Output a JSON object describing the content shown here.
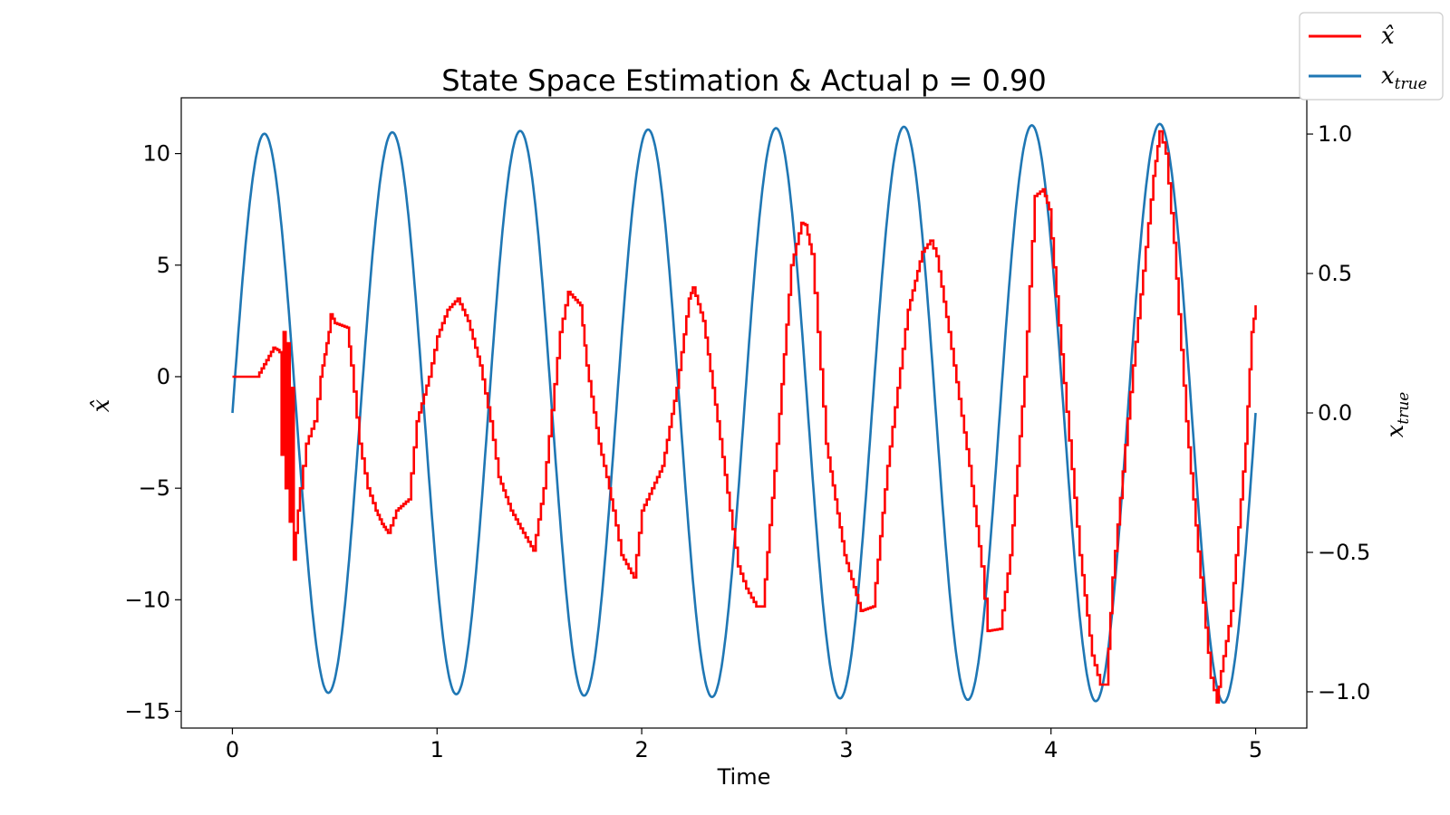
{
  "chart_data": {
    "type": "line",
    "title": "State Space Estimation & Actual p = 0.90",
    "xlabel": "Time",
    "ylabel_left": "x̂",
    "ylabel_right": {
      "base": "x",
      "sub": "true"
    },
    "xlim": [
      -0.25,
      5.25
    ],
    "ylim_left": [
      -15.75,
      12.5
    ],
    "ylim_right": [
      -1.13,
      1.13
    ],
    "xticks": [
      0,
      1,
      2,
      3,
      4,
      5
    ],
    "xtick_labels": [
      "0",
      "1",
      "2",
      "3",
      "4",
      "5"
    ],
    "yticks_left": [
      10,
      5,
      0,
      -5,
      -10,
      -15
    ],
    "ytick_labels_left": [
      "10",
      "5",
      "0",
      "−5",
      "−10",
      "−15"
    ],
    "yticks_right": [
      1.0,
      0.5,
      0.0,
      -0.5,
      -1.0
    ],
    "ytick_labels_right": [
      "1.0",
      "0.5",
      "0.0",
      "−0.5",
      "−1.0"
    ],
    "legend_position": "top-right",
    "legend": [
      {
        "label": "x̂",
        "color": "#ff0000"
      },
      {
        "label": "x",
        "sub": "true",
        "color": "#1f77b4"
      }
    ],
    "series": [
      {
        "name": "x̂",
        "axis": "left",
        "color": "#ff0000",
        "x": [
          0,
          0.1,
          0.12,
          0.2,
          0.22,
          0.23,
          0.24,
          0.25,
          0.26,
          0.27,
          0.28,
          0.29,
          0.3,
          0.31,
          0.33,
          0.36,
          0.4,
          0.43,
          0.45,
          0.47,
          0.48,
          0.5,
          0.56,
          0.58,
          0.62,
          0.66,
          0.7,
          0.73,
          0.76,
          0.8,
          0.86,
          0.9,
          0.96,
          1.0,
          1.05,
          1.1,
          1.15,
          1.21,
          1.26,
          1.3,
          1.36,
          1.42,
          1.47,
          1.52,
          1.56,
          1.6,
          1.64,
          1.7,
          1.73,
          1.79,
          1.84,
          1.86,
          1.9,
          1.96,
          2.0,
          2.1,
          2.17,
          2.23,
          2.25,
          2.3,
          2.37,
          2.43,
          2.47,
          2.51,
          2.56,
          2.59,
          2.66,
          2.73,
          2.78,
          2.8,
          2.83,
          2.86,
          2.9,
          2.99,
          3.07,
          3.13,
          3.2,
          3.3,
          3.37,
          3.41,
          3.44,
          3.5,
          3.6,
          3.66,
          3.69,
          3.75,
          3.8,
          3.87,
          3.92,
          3.96,
          3.99,
          4.05,
          4.14,
          4.2,
          4.24,
          4.27,
          4.3,
          4.4,
          4.5,
          4.53,
          4.56,
          4.6,
          4.66,
          4.73,
          4.78,
          4.81,
          4.83,
          4.88,
          4.95,
          4.98,
          5.0
        ],
        "values": [
          0,
          0,
          0,
          1.3,
          1.2,
          1.1,
          -3.5,
          2.0,
          -5,
          1.5,
          -6.5,
          -0.5,
          -8.2,
          -7,
          -5,
          -3,
          -2,
          0,
          1,
          2,
          2.8,
          2.4,
          2.2,
          0.5,
          -3,
          -5,
          -6,
          -6.6,
          -7,
          -6,
          -5.5,
          -2,
          0,
          1.8,
          3,
          3.5,
          2.5,
          0.5,
          -2,
          -4.5,
          -6,
          -7,
          -7.8,
          -5,
          -1.5,
          2,
          3.8,
          3.2,
          0.5,
          -3,
          -5,
          -6,
          -8,
          -9,
          -6,
          -4,
          -0.5,
          3.5,
          4,
          2.5,
          -2,
          -6,
          -8.5,
          -9.5,
          -10.3,
          -10.3,
          -3,
          5,
          6.9,
          6.8,
          5.5,
          2,
          -3,
          -8,
          -10.5,
          -10.3,
          -4,
          3,
          5.6,
          6.1,
          5.4,
          2,
          -4,
          -8.5,
          -11.4,
          -11.3,
          -8,
          0,
          8.1,
          8.4,
          7.5,
          1,
          -8,
          -12.5,
          -13.8,
          -13.8,
          -9,
          0.5,
          9,
          11,
          10,
          6,
          -2,
          -9,
          -13.5,
          -14.6,
          -13.2,
          -10.5,
          -3,
          2,
          3.2
        ]
      },
      {
        "name": "x",
        "axis": "right",
        "color": "#1f77b4",
        "function": "sine",
        "amplitude_start": 1.0,
        "amplitude_end": 1.04,
        "period": 0.625,
        "x_range": [
          0,
          5
        ]
      }
    ]
  }
}
